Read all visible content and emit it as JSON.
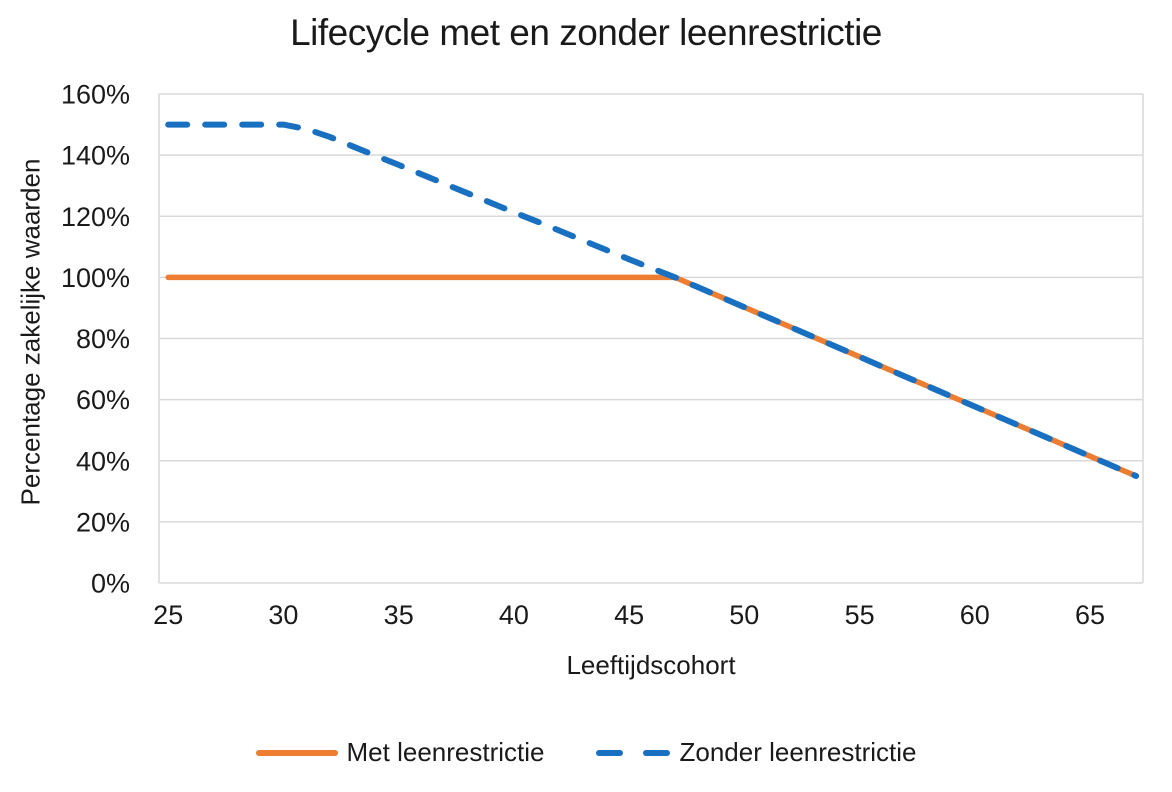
{
  "colors": {
    "text": "#1a1a1a",
    "grid": "#d9d9d9",
    "background": "#ffffff"
  },
  "chart_data": {
    "type": "line",
    "title": "Lifecycle met en zonder leenrestrictie",
    "xlabel": "Leeftijdscohort",
    "ylabel": "Percentage zakelijke waarden",
    "x_ticks": [
      25,
      30,
      35,
      40,
      45,
      50,
      55,
      60,
      65
    ],
    "y_ticks": [
      "0%",
      "20%",
      "40%",
      "60%",
      "80%",
      "100%",
      "120%",
      "140%",
      "160%"
    ],
    "xlim": [
      24.6,
      67.3
    ],
    "ylim": [
      0,
      160
    ],
    "grid": "horizontal",
    "legend_position": "bottom",
    "x": [
      25,
      26,
      27,
      28,
      29,
      30,
      31,
      32,
      33,
      34,
      35,
      36,
      37,
      38,
      39,
      40,
      41,
      42,
      43,
      44,
      45,
      46,
      47,
      48,
      49,
      50,
      51,
      52,
      53,
      54,
      55,
      56,
      57,
      58,
      59,
      60,
      61,
      62,
      63,
      64,
      65,
      66,
      67
    ],
    "series": [
      {
        "name": "Met leenrestrictie",
        "color": "#ED7D31",
        "style": "solid",
        "values": [
          100,
          100,
          100,
          100,
          100,
          100,
          100,
          100,
          100,
          100,
          100,
          100,
          100,
          100,
          100,
          100,
          100,
          100,
          100,
          100,
          100,
          100,
          100,
          96.75,
          93.5,
          90.25,
          87,
          83.75,
          80.5,
          77.25,
          74,
          70.75,
          67.5,
          64.25,
          61,
          57.75,
          54.5,
          51.25,
          48,
          44.75,
          41.5,
          38.25,
          35
        ]
      },
      {
        "name": "Zonder leenrestrictie",
        "color": "#1A70C0",
        "style": "dashed",
        "values": [
          150,
          150,
          150,
          150,
          150,
          150,
          148.5,
          146,
          142.9,
          139.8,
          136.8,
          133.7,
          130.6,
          127.5,
          124.4,
          121.3,
          118.3,
          115.2,
          112.1,
          109,
          105.9,
          102.9,
          100,
          96.75,
          93.5,
          90.25,
          87,
          83.75,
          80.5,
          77.25,
          74,
          70.75,
          67.5,
          64.25,
          61,
          57.75,
          54.5,
          51.25,
          48,
          44.75,
          41.5,
          38.25,
          35
        ]
      }
    ]
  }
}
